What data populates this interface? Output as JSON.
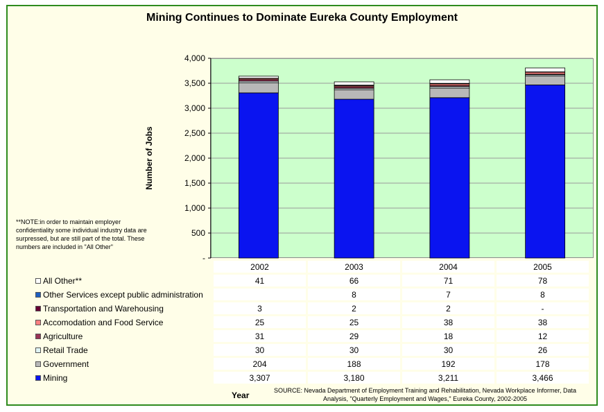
{
  "chart_data": {
    "type": "bar",
    "stacked": true,
    "title": "Mining Continues to Dominate Eureka County Employment",
    "xlabel": "Year",
    "ylabel": "Number of Jobs",
    "ylim": [
      0,
      4000
    ],
    "yticks": [
      "-",
      "500",
      "1,000",
      "1,500",
      "2,000",
      "2,500",
      "3,000",
      "3,500",
      "4,000"
    ],
    "ytick_values": [
      0,
      500,
      1000,
      1500,
      2000,
      2500,
      3000,
      3500,
      4000
    ],
    "grid": true,
    "categories": [
      "2002",
      "2003",
      "2004",
      "2005"
    ],
    "series": [
      {
        "name": "Mining",
        "color": "#0a14f0",
        "values": [
          3307,
          3180,
          3211,
          3466
        ],
        "labels": [
          "3,307",
          "3,180",
          "3,211",
          "3,466"
        ]
      },
      {
        "name": "Government",
        "color": "#b8b8b8",
        "values": [
          204,
          188,
          192,
          178
        ],
        "labels": [
          "204",
          "188",
          "192",
          "178"
        ]
      },
      {
        "name": "Retail Trade",
        "color": "#e0f4f4",
        "values": [
          30,
          30,
          30,
          26
        ],
        "labels": [
          "30",
          "30",
          "30",
          "26"
        ]
      },
      {
        "name": "Agriculture",
        "color": "#993355",
        "values": [
          31,
          29,
          18,
          12
        ],
        "labels": [
          "31",
          "29",
          "18",
          "12"
        ]
      },
      {
        "name": "Accomodation and Food Service",
        "color": "#ff8080",
        "values": [
          25,
          25,
          38,
          38
        ],
        "labels": [
          "25",
          "25",
          "38",
          "38"
        ]
      },
      {
        "name": "Transportation and Warehousing",
        "color": "#660033",
        "values": [
          3,
          2,
          2,
          0
        ],
        "labels": [
          "3",
          "2",
          "2",
          "-"
        ]
      },
      {
        "name": "Other Services except public administration",
        "color": "#1f5fbf",
        "values": [
          0,
          8,
          7,
          8
        ],
        "labels": [
          "",
          "8",
          "7",
          "8"
        ]
      },
      {
        "name": "All Other**",
        "color": "#ffffff",
        "values": [
          41,
          66,
          71,
          78
        ],
        "labels": [
          "41",
          "66",
          "71",
          "78"
        ]
      }
    ]
  },
  "note": "**NOTE:in order to maintain employer confidentiality some individual industry data are surpressed, but are still part of the total. These numbers are included in \"All Other\"",
  "source": "SOURCE: Nevada Department of Employment Training and Rehabilitation, Nevada Workplace Informer, Data Analysis, \"Quarterly Employment and Wages,\" Eureka County, 2002-2005"
}
